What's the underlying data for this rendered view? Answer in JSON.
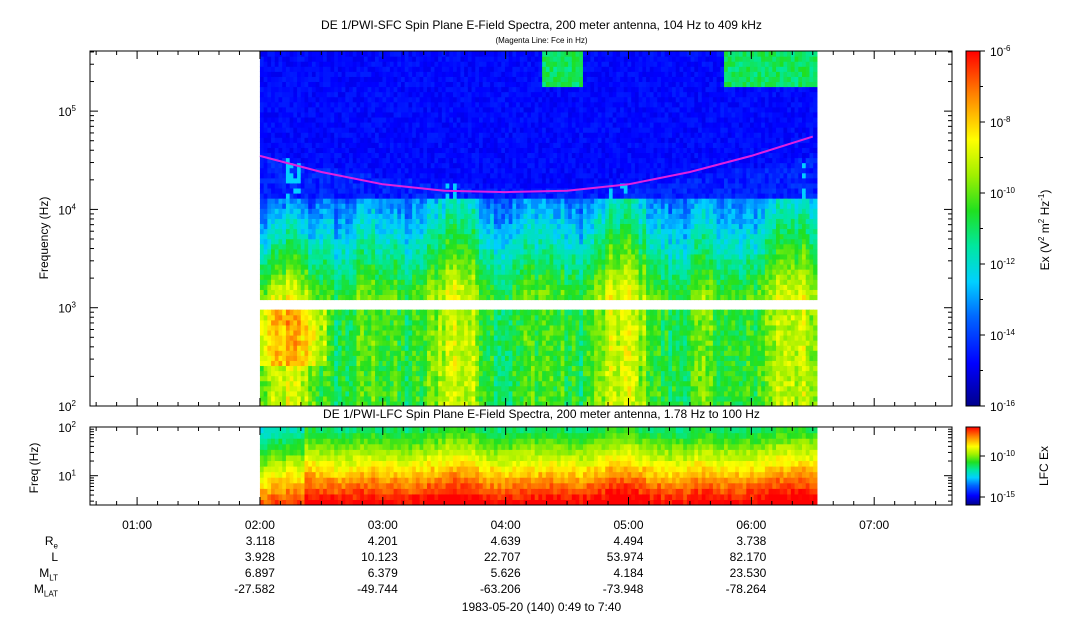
{
  "chart_data": [
    {
      "type": "heatmap",
      "title": "DE 1/PWI-SFC  Spin Plane E-Field Spectra, 200 meter antenna, 104 Hz to 409 kHz",
      "subtitle": "(Magenta Line: Fce in Hz)",
      "ylabel": "Frequency (Hz)",
      "yscale": "log",
      "ylim": [
        100,
        409000
      ],
      "y_ticks": [
        {
          "v": 100,
          "base": "10",
          "exp": "2"
        },
        {
          "v": 1000,
          "base": "10",
          "exp": "3"
        },
        {
          "v": 10000,
          "base": "10",
          "exp": "4"
        },
        {
          "v": 100000,
          "base": "10",
          "exp": "5"
        }
      ],
      "xlim": [
        "00:37",
        "07:38"
      ],
      "data_range": [
        "02:00",
        "06:32"
      ],
      "fce_line": {
        "color": "#e020e0",
        "times": [
          "02:00",
          "02:30",
          "03:00",
          "03:30",
          "04:00",
          "04:30",
          "05:00",
          "05:30",
          "06:00",
          "06:30"
        ],
        "values": [
          35000,
          24000,
          18000,
          15500,
          15000,
          15500,
          18000,
          24000,
          35000,
          55000
        ]
      },
      "colorbar": {
        "label": "Ex (V² m² Hz⁻¹)",
        "label_parts": {
          "main": "Ex (V",
          "sup1": "2",
          "mid": " m",
          "sup2": "2",
          "mid2": " Hz",
          "sup3": "-1",
          "end": ")"
        },
        "scale": "log",
        "range": [
          1e-16,
          1e-06
        ],
        "ticks": [
          {
            "base": "10",
            "exp": "-6"
          },
          {
            "base": "10",
            "exp": "-8"
          },
          {
            "base": "10",
            "exp": "-10"
          },
          {
            "base": "10",
            "exp": "-12"
          },
          {
            "base": "10",
            "exp": "-14"
          },
          {
            "base": "10",
            "exp": "-16"
          }
        ]
      }
    },
    {
      "type": "heatmap",
      "title": "DE 1/PWI-LFC  Spin Plane E-Field Spectra, 200 meter antenna, 1.78 Hz to 100 Hz",
      "ylabel": "Freq (Hz)",
      "yscale": "log",
      "ylim": [
        2.5,
        100
      ],
      "y_ticks": [
        {
          "v": 10,
          "base": "10",
          "exp": "1"
        },
        {
          "v": 100,
          "base": "10",
          "exp": "2"
        }
      ],
      "data_range": [
        "02:00",
        "06:32"
      ],
      "colorbar": {
        "label": "LFC Ex",
        "scale": "log",
        "ticks": [
          {
            "base": "10",
            "exp": "-10"
          },
          {
            "base": "10",
            "exp": "-15"
          }
        ]
      }
    }
  ],
  "x_axis": {
    "ticks": [
      "01:00",
      "02:00",
      "03:00",
      "04:00",
      "05:00",
      "06:00",
      "07:00"
    ]
  },
  "orbit": {
    "rows": [
      {
        "label": "R",
        "sub": "e",
        "values": [
          "3.118",
          "4.201",
          "4.639",
          "4.494",
          "3.738"
        ]
      },
      {
        "label": "L",
        "sub": "",
        "values": [
          "3.928",
          "10.123",
          "22.707",
          "53.974",
          "82.170"
        ]
      },
      {
        "label": "M",
        "sub": "LT",
        "values": [
          "6.897",
          "6.379",
          "5.626",
          "4.184",
          "23.530"
        ]
      },
      {
        "label": "M",
        "sub": "LAT",
        "values": [
          "-27.582",
          "-49.744",
          "-63.206",
          "-73.948",
          "-78.264"
        ]
      }
    ]
  },
  "footer": "1983-05-20 (140) 0:49 to 7:40"
}
